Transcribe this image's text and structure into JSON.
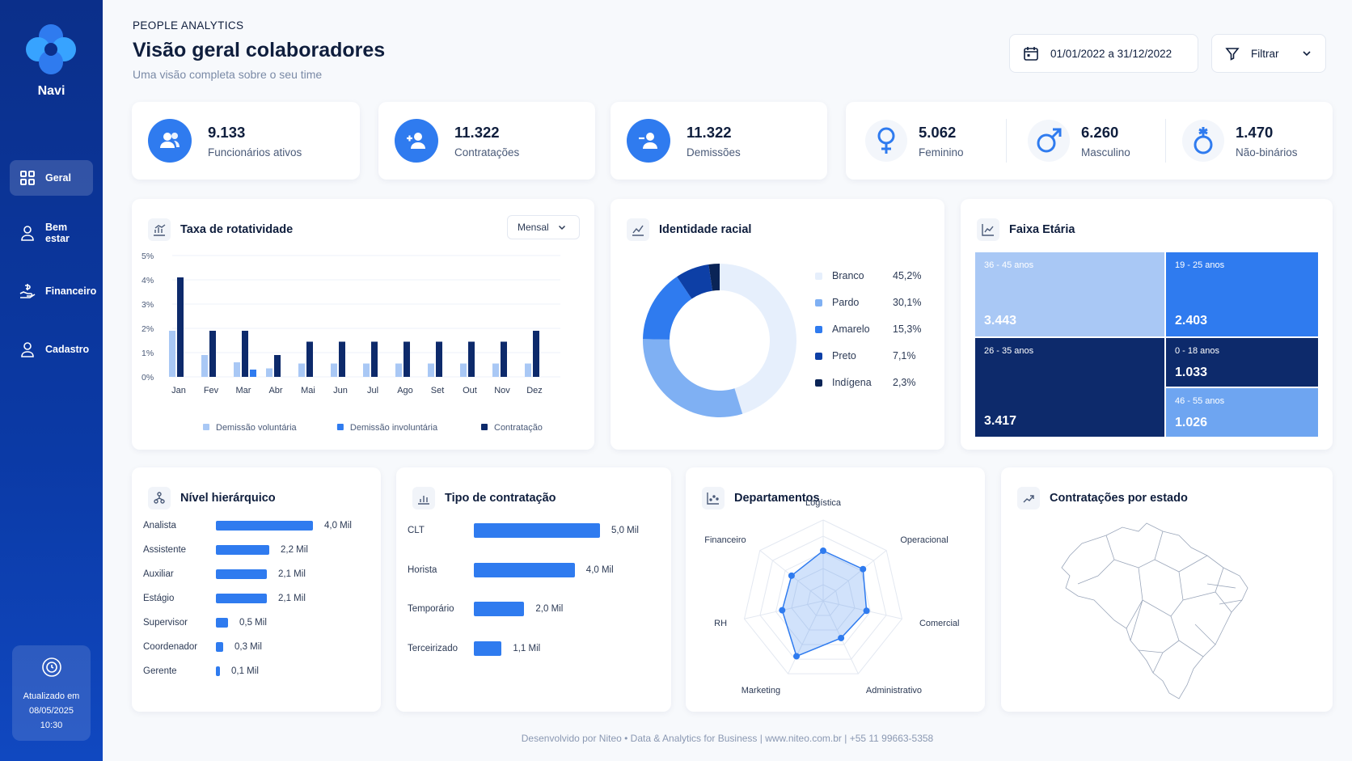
{
  "sidebar": {
    "brand": "Navi",
    "items": [
      {
        "label": "Geral",
        "icon": "grid-icon",
        "active": true
      },
      {
        "label": "Bem estar",
        "icon": "user-icon"
      },
      {
        "label": "Financeiro",
        "icon": "money-hand-icon"
      },
      {
        "label": "Cadastro",
        "icon": "user-icon"
      }
    ],
    "updated_label": "Atualizado em",
    "updated_date": "08/05/2025",
    "updated_time": "10:30"
  },
  "header": {
    "eyebrow": "PEOPLE ANALYTICS",
    "title": "Visão geral colaboradores",
    "subtitle": "Uma visão completa sobre o seu time",
    "date_range": "01/01/2022 a 31/12/2022",
    "filter_label": "Filtrar"
  },
  "kpis": [
    {
      "value": "9.133",
      "label": "Funcionários ativos",
      "icon": "users-icon"
    },
    {
      "value": "11.322",
      "label": "Contratações",
      "icon": "user-plus-icon"
    },
    {
      "value": "11.322",
      "label": "Demissões",
      "icon": "user-minus-icon"
    }
  ],
  "gender": [
    {
      "value": "5.062",
      "label": "Feminino",
      "icon": "female-icon"
    },
    {
      "value": "6.260",
      "label": "Masculino",
      "icon": "male-icon"
    },
    {
      "value": "1.470",
      "label": "Não-binários",
      "icon": "nonbinary-icon"
    }
  ],
  "turnover": {
    "title": "Taxa de rotatividade",
    "period": "Mensal",
    "chart_data": {
      "type": "bar",
      "categories": [
        "Jan",
        "Fev",
        "Mar",
        "Abr",
        "Mai",
        "Jun",
        "Jul",
        "Ago",
        "Set",
        "Out",
        "Nov",
        "Dez"
      ],
      "y_ticks": [
        "0%",
        "1%",
        "2%",
        "3%",
        "4%",
        "5%"
      ],
      "ylim": [
        0,
        5
      ],
      "series": [
        {
          "name": "Demissão voluntária",
          "color": "#a9c8f5",
          "values": [
            1.9,
            0.9,
            0.6,
            0.35,
            0.55,
            0.55,
            0.55,
            0.55,
            0.55,
            0.55,
            0.55,
            0.55
          ]
        },
        {
          "name": "Demissão involuntária",
          "color": "#2f7bef",
          "values": [
            0,
            0,
            0.3,
            0,
            0,
            0,
            0,
            0,
            0,
            0,
            0,
            0
          ]
        },
        {
          "name": "Contratação",
          "color": "#0d2a6b",
          "values": [
            4.1,
            1.9,
            1.9,
            0.9,
            1.45,
            1.45,
            1.45,
            1.45,
            1.45,
            1.45,
            1.45,
            1.9
          ]
        }
      ]
    }
  },
  "racial": {
    "title": "Identidade racial",
    "chart_data": {
      "type": "pie",
      "labels": [
        "Branco",
        "Pardo",
        "Amarelo",
        "Preto",
        "Indígena"
      ],
      "values": [
        45.2,
        30.1,
        15.3,
        7.1,
        2.3
      ],
      "display": [
        "45,2%",
        "30,1%",
        "15,3%",
        "7,1%",
        "2,3%"
      ],
      "colors": [
        "#e6effc",
        "#7fb0f3",
        "#2f7bef",
        "#0d3fa6",
        "#0a2456"
      ]
    }
  },
  "age": {
    "title": "Faixa Etária",
    "cells": [
      {
        "label": "36 - 45 anos",
        "value": "3.443",
        "color": "#a9c8f5"
      },
      {
        "label": "19 - 25 anos",
        "value": "2.403",
        "color": "#2f7bef"
      },
      {
        "label": "26 - 35 anos",
        "value": "3.417",
        "color": "#0d2a6b"
      },
      {
        "label": "0 - 18 anos",
        "value": "1.033",
        "color": "#0d2a6b"
      },
      {
        "label": "46 - 55 anos",
        "value": "1.026",
        "color": "#6ea5f1"
      }
    ]
  },
  "hierarchy": {
    "title": "Nível hierárquico",
    "chart_data": {
      "type": "bar",
      "orientation": "horizontal",
      "categories": [
        "Analista",
        "Assistente",
        "Auxiliar",
        "Estágio",
        "Supervisor",
        "Coordenador",
        "Gerente"
      ],
      "values": [
        4.0,
        2.2,
        2.1,
        2.1,
        0.5,
        0.3,
        0.1
      ],
      "labels": [
        "4,0 Mil",
        "2,2 Mil",
        "2,1 Mil",
        "2,1 Mil",
        "0,5 Mil",
        "0,3 Mil",
        "0,1 Mil"
      ]
    }
  },
  "contract": {
    "title": "Tipo de contratação",
    "chart_data": {
      "type": "bar",
      "orientation": "horizontal",
      "categories": [
        "CLT",
        "Horista",
        "Temporário",
        "Terceirizado"
      ],
      "values": [
        5.0,
        4.0,
        2.0,
        1.1
      ],
      "labels": [
        "5,0 Mil",
        "4,0 Mil",
        "2,0 Mil",
        "1,1 Mil"
      ]
    }
  },
  "departments": {
    "title": "Departamentos",
    "chart_data": {
      "type": "radar",
      "axes": [
        "Logística",
        "Operacional",
        "Comercial",
        "Administrativo",
        "Marketing",
        "RH",
        "Financeiro"
      ],
      "values": [
        0.62,
        0.63,
        0.55,
        0.51,
        0.76,
        0.52,
        0.5
      ],
      "max": 1
    }
  },
  "states": {
    "title": "Contratações por estado"
  },
  "footer": "Desenvolvido por Niteo • Data & Analytics for Business  |  www.niteo.com.br  |  +55 11 99663-5358"
}
